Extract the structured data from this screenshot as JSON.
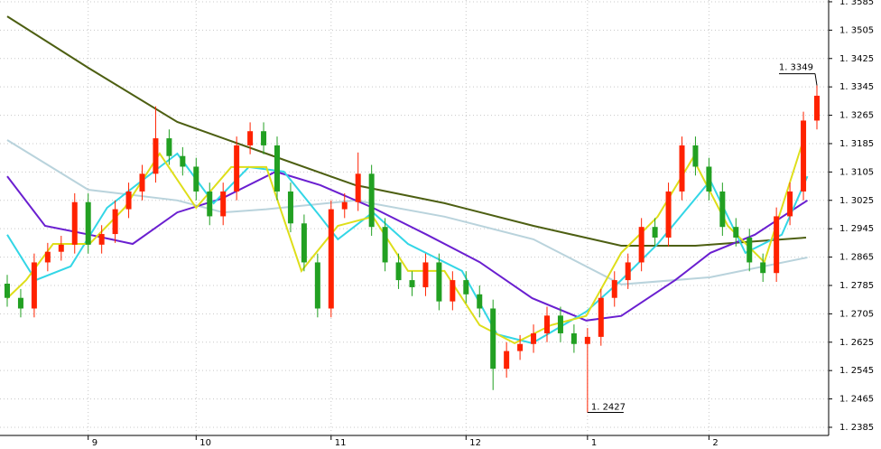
{
  "chart_data": {
    "type": "candlestick",
    "categories": [
      null,
      null,
      null,
      null,
      null,
      null,
      "9",
      null,
      null,
      null,
      null,
      null,
      null,
      null,
      "10",
      null,
      null,
      null,
      null,
      null,
      null,
      null,
      null,
      null,
      "11",
      null,
      null,
      null,
      null,
      null,
      null,
      null,
      null,
      null,
      "12",
      null,
      null,
      null,
      null,
      null,
      null,
      null,
      null,
      "1",
      null,
      null,
      null,
      null,
      null,
      null,
      null,
      null,
      "2",
      null,
      null,
      null,
      null,
      null,
      null,
      null,
      null
    ],
    "open": [
      1.279,
      1.275,
      1.272,
      1.285,
      1.288,
      1.29,
      1.302,
      1.29,
      1.293,
      1.3,
      1.305,
      1.31,
      1.32,
      1.315,
      1.312,
      1.305,
      1.298,
      1.305,
      1.318,
      1.322,
      1.318,
      1.305,
      1.296,
      1.285,
      1.272,
      1.3,
      1.302,
      1.31,
      1.295,
      1.285,
      1.28,
      1.278,
      1.285,
      1.274,
      1.28,
      1.276,
      1.272,
      1.255,
      1.26,
      1.262,
      1.265,
      1.27,
      1.265,
      1.262,
      1.264,
      1.275,
      1.28,
      1.285,
      1.295,
      1.292,
      1.305,
      1.318,
      1.312,
      1.305,
      1.295,
      1.292,
      1.285,
      1.282,
      1.298,
      1.305,
      1.325
    ],
    "high": [
      1.2815,
      1.2775,
      1.2875,
      1.2905,
      1.2925,
      1.3045,
      1.3045,
      1.2955,
      1.3025,
      1.3075,
      1.3125,
      1.329,
      1.3225,
      1.3175,
      1.3145,
      1.3075,
      1.3075,
      1.3205,
      1.3245,
      1.3245,
      1.3205,
      1.3075,
      1.2985,
      1.2875,
      1.3025,
      1.3045,
      1.316,
      1.3125,
      1.2975,
      1.2875,
      1.2825,
      1.2875,
      1.2875,
      1.2825,
      1.2825,
      1.2785,
      1.2745,
      1.2625,
      1.2645,
      1.2675,
      1.2725,
      1.2725,
      1.2675,
      1.2665,
      1.2775,
      1.2825,
      1.2875,
      1.2975,
      1.2975,
      1.3075,
      1.3205,
      1.3205,
      1.3145,
      1.3075,
      1.2975,
      1.2945,
      1.2875,
      1.3005,
      1.3075,
      1.3275,
      1.3349
    ],
    "low": [
      1.2725,
      1.2695,
      1.2695,
      1.2825,
      1.2855,
      1.2875,
      1.2875,
      1.2875,
      1.2905,
      1.2975,
      1.3025,
      1.3075,
      1.3125,
      1.3095,
      1.3025,
      1.2955,
      1.2955,
      1.3025,
      1.3155,
      1.3155,
      1.3025,
      1.2935,
      1.2825,
      1.2695,
      1.2695,
      1.2975,
      1.2995,
      1.2925,
      1.2825,
      1.2775,
      1.2755,
      1.2755,
      1.2715,
      1.2715,
      1.2735,
      1.2695,
      1.249,
      1.2525,
      1.2575,
      1.2595,
      1.2625,
      1.2625,
      1.2595,
      1.2427,
      1.2615,
      1.2725,
      1.2775,
      1.2825,
      1.2895,
      1.2895,
      1.3025,
      1.3095,
      1.3025,
      1.2925,
      1.2895,
      1.2825,
      1.2795,
      1.2795,
      1.2955,
      1.3025,
      1.3225
    ],
    "close": [
      1.275,
      1.272,
      1.285,
      1.288,
      1.29,
      1.302,
      1.29,
      1.293,
      1.3,
      1.305,
      1.31,
      1.32,
      1.315,
      1.312,
      1.305,
      1.298,
      1.305,
      1.318,
      1.322,
      1.318,
      1.305,
      1.296,
      1.285,
      1.272,
      1.3,
      1.302,
      1.31,
      1.295,
      1.285,
      1.28,
      1.278,
      1.285,
      1.274,
      1.28,
      1.276,
      1.272,
      1.255,
      1.26,
      1.262,
      1.265,
      1.27,
      1.265,
      1.262,
      1.264,
      1.275,
      1.28,
      1.285,
      1.295,
      1.292,
      1.305,
      1.318,
      1.312,
      1.305,
      1.295,
      1.292,
      1.285,
      1.282,
      1.298,
      1.305,
      1.325,
      1.332
    ],
    "up_color": "#ff2200",
    "down_color": "#22a022",
    "lines": [
      {
        "color": "#4d5f12",
        "x": [
          0,
          6,
          12.6,
          19.2,
          25.8,
          32.4,
          39,
          45.5,
          51,
          59.2
        ],
        "values": [
          1.3544,
          1.3399,
          1.3246,
          1.3157,
          1.3068,
          1.3017,
          1.2953,
          1.2897,
          1.2897,
          1.292
        ]
      },
      {
        "color": "#b9d3dc",
        "x": [
          0,
          6,
          12.6,
          16,
          19.2,
          25.8,
          32.4,
          39,
          45.5,
          52.1,
          59.3
        ],
        "values": [
          1.3195,
          1.3055,
          1.3025,
          1.2991,
          1.3,
          1.3025,
          1.2979,
          1.2915,
          1.2788,
          1.2808,
          1.2864
        ]
      },
      {
        "color": "#6a1fd0",
        "x": [
          0,
          2.8,
          6.1,
          9.3,
          12.6,
          15.9,
          19.9,
          23.2,
          27.1,
          31.1,
          35,
          38.9,
          42.9,
          45.5,
          49.5,
          52.1,
          55.4,
          59.3
        ],
        "values": [
          1.3093,
          1.2953,
          1.2928,
          1.2902,
          1.2991,
          1.303,
          1.3106,
          1.3068,
          1.3004,
          1.2928,
          1.2851,
          1.2749,
          1.2686,
          1.2699,
          1.28,
          1.2877,
          1.2928,
          1.3025
        ]
      },
      {
        "color": "#33d6e6",
        "x": [
          0,
          2.1,
          4.7,
          7.4,
          10,
          12.6,
          15.3,
          17.9,
          20.5,
          23.2,
          24.5,
          27.1,
          29.7,
          33.7,
          36.3,
          38.9,
          42.9,
          45.5,
          48.2,
          52.1,
          54.7,
          57.4,
          59.3
        ],
        "values": [
          1.2928,
          1.28,
          1.2839,
          1.3004,
          1.3081,
          1.3157,
          1.3017,
          1.3119,
          1.3106,
          1.2979,
          1.2915,
          1.2991,
          1.2902,
          1.2826,
          1.2647,
          1.2622,
          1.2711,
          1.28,
          1.2902,
          1.3081,
          1.2877,
          1.2928,
          1.3093
        ]
      },
      {
        "color": "#dede1a",
        "x": [
          0,
          1.4,
          3.4,
          6.1,
          8.7,
          11.3,
          14,
          16.6,
          19.2,
          21.8,
          24.5,
          27.1,
          29.7,
          32.4,
          35,
          37.6,
          40.3,
          42.9,
          45.5,
          48.2,
          50.8,
          53.4,
          56.1,
          57.4,
          59
        ],
        "values": [
          1.2749,
          1.28,
          1.2902,
          1.2902,
          1.3004,
          1.3157,
          1.3004,
          1.3119,
          1.3119,
          1.2826,
          1.2953,
          1.2979,
          1.2826,
          1.2826,
          1.2673,
          1.2622,
          1.2673,
          1.2699,
          1.2877,
          1.2979,
          1.3144,
          1.2953,
          1.2851,
          1.3004,
          1.3195
        ]
      }
    ],
    "annotations": [
      {
        "text": "1. 3349",
        "value": 1.3349,
        "at": "high"
      },
      {
        "text": "1. 2427",
        "value": 1.2427,
        "at": "low"
      }
    ],
    "ylim": [
      1.2362,
      1.359
    ],
    "yticks": [
      {
        "value": 1.2385,
        "label": "1. 2385"
      },
      {
        "value": 1.2465,
        "label": "1. 2465"
      },
      {
        "value": 1.2545,
        "label": "1. 2545"
      },
      {
        "value": 1.2625,
        "label": "1. 2625"
      },
      {
        "value": 1.2705,
        "label": "1. 2705"
      },
      {
        "value": 1.2785,
        "label": "1. 2785"
      },
      {
        "value": 1.2865,
        "label": "1. 2865"
      },
      {
        "value": 1.2945,
        "label": "1. 2945"
      },
      {
        "value": 1.3025,
        "label": "1. 3025"
      },
      {
        "value": 1.3105,
        "label": "1. 3105"
      },
      {
        "value": 1.3185,
        "label": "1. 3185"
      },
      {
        "value": 1.3265,
        "label": "1. 3265"
      },
      {
        "value": 1.3345,
        "label": "1. 3345"
      },
      {
        "value": 1.3425,
        "label": "1. 3425"
      },
      {
        "value": 1.3505,
        "label": "1. 3505"
      },
      {
        "value": 1.3585,
        "label": "1. 3585"
      }
    ],
    "grid": true
  }
}
